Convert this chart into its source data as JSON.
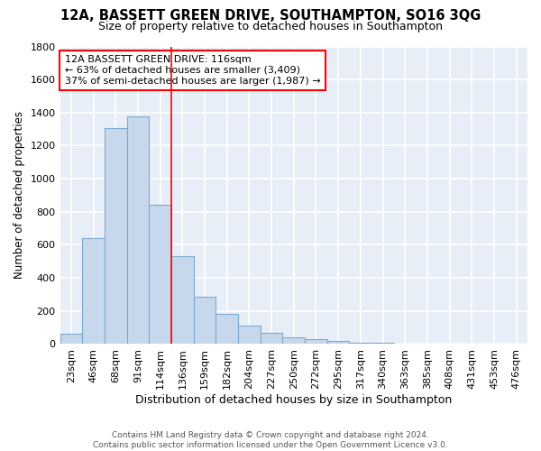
{
  "title1": "12A, BASSETT GREEN DRIVE, SOUTHAMPTON, SO16 3QG",
  "title2": "Size of property relative to detached houses in Southampton",
  "xlabel": "Distribution of detached houses by size in Southampton",
  "ylabel": "Number of detached properties",
  "categories": [
    "23sqm",
    "46sqm",
    "68sqm",
    "91sqm",
    "114sqm",
    "136sqm",
    "159sqm",
    "182sqm",
    "204sqm",
    "227sqm",
    "250sqm",
    "272sqm",
    "295sqm",
    "317sqm",
    "340sqm",
    "363sqm",
    "385sqm",
    "408sqm",
    "431sqm",
    "453sqm",
    "476sqm"
  ],
  "values": [
    60,
    640,
    1305,
    1375,
    845,
    530,
    285,
    185,
    110,
    70,
    40,
    30,
    20,
    10,
    10,
    5,
    5,
    0,
    0,
    0,
    0
  ],
  "bar_color": "#c8d8ec",
  "bar_edgecolor": "#7aaad0",
  "bar_linewidth": 0.8,
  "vline_x": 4.5,
  "vline_color": "red",
  "vline_linewidth": 1.2,
  "ylim": [
    0,
    1800
  ],
  "yticks": [
    0,
    200,
    400,
    600,
    800,
    1000,
    1200,
    1400,
    1600,
    1800
  ],
  "annotation_line1": "12A BASSETT GREEN DRIVE: 116sqm",
  "annotation_line2": "← 63% of detached houses are smaller (3,409)",
  "annotation_line3": "37% of semi-detached houses are larger (1,987) →",
  "annotation_box_color": "white",
  "annotation_edgecolor": "red",
  "background_color": "#e8eef8",
  "grid_color": "white",
  "footnote": "Contains HM Land Registry data © Crown copyright and database right 2024.\nContains public sector information licensed under the Open Government Licence v3.0.",
  "title1_fontsize": 10.5,
  "title2_fontsize": 9,
  "xlabel_fontsize": 9,
  "ylabel_fontsize": 8.5,
  "tick_fontsize": 8,
  "annotation_fontsize": 8,
  "footnote_fontsize": 6.5
}
